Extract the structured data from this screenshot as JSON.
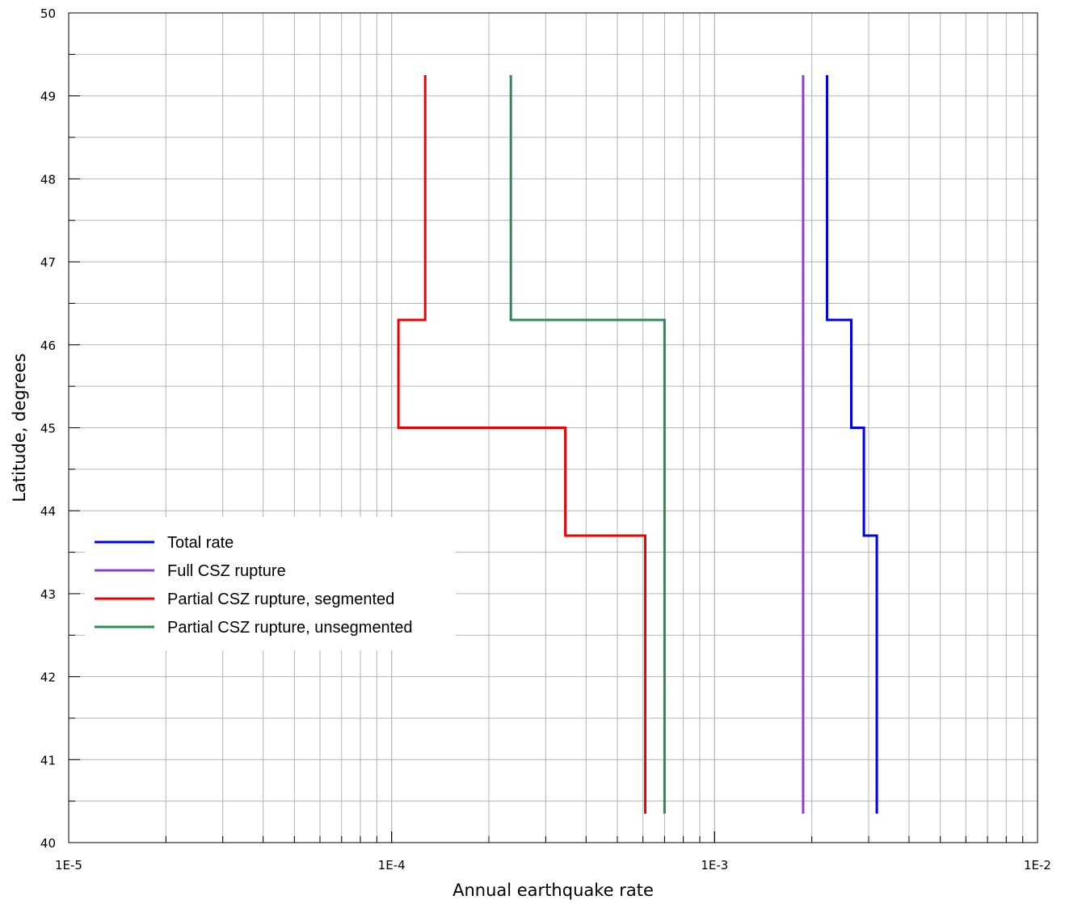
{
  "chart_data": {
    "type": "line",
    "xlabel": "Annual earthquake rate",
    "ylabel": "Latitude, degrees",
    "x_scale": "log",
    "xlim": [
      1e-05,
      0.01
    ],
    "ylim": [
      40,
      50
    ],
    "x_ticks": [
      {
        "value": 1e-05,
        "label": "1E-5"
      },
      {
        "value": 0.0001,
        "label": "1E-4"
      },
      {
        "value": 0.001,
        "label": "1E-3"
      },
      {
        "value": 0.01,
        "label": "1E-2"
      }
    ],
    "y_ticks": [
      {
        "value": 40,
        "label": "40"
      },
      {
        "value": 41,
        "label": "41"
      },
      {
        "value": 42,
        "label": "42"
      },
      {
        "value": 43,
        "label": "43"
      },
      {
        "value": 44,
        "label": "44"
      },
      {
        "value": 45,
        "label": "45"
      },
      {
        "value": 46,
        "label": "46"
      },
      {
        "value": 47,
        "label": "47"
      },
      {
        "value": 48,
        "label": "48"
      },
      {
        "value": 49,
        "label": "49"
      },
      {
        "value": 50,
        "label": "50"
      }
    ],
    "grid": true,
    "legend_position": "left",
    "series": [
      {
        "name": "Total rate",
        "color": "#0000ee",
        "points": [
          [
            0.00223,
            49.25
          ],
          [
            0.00223,
            46.3
          ],
          [
            0.00265,
            46.3
          ],
          [
            0.00265,
            45.0
          ],
          [
            0.0029,
            45.0
          ],
          [
            0.0029,
            43.7
          ],
          [
            0.00318,
            43.7
          ],
          [
            0.00318,
            40.35
          ]
        ]
      },
      {
        "name": "Full CSZ rupture",
        "color": "#8b3fd6",
        "points": [
          [
            0.00188,
            49.25
          ],
          [
            0.00188,
            40.35
          ]
        ]
      },
      {
        "name": "Partial CSZ rupture, segmented",
        "color": "#ee0000",
        "points": [
          [
            0.000127,
            49.25
          ],
          [
            0.000127,
            46.3
          ],
          [
            0.000105,
            46.3
          ],
          [
            0.000105,
            45.0
          ],
          [
            0.000345,
            45.0
          ],
          [
            0.000345,
            43.7
          ],
          [
            0.00061,
            43.7
          ],
          [
            0.00061,
            40.35
          ]
        ]
      },
      {
        "name": "Partial CSZ rupture, unsegmented",
        "color": "#2e8b57",
        "points": [
          [
            0.000234,
            49.25
          ],
          [
            0.000234,
            46.3
          ],
          [
            0.0007,
            46.3
          ],
          [
            0.0007,
            40.35
          ]
        ]
      }
    ]
  }
}
